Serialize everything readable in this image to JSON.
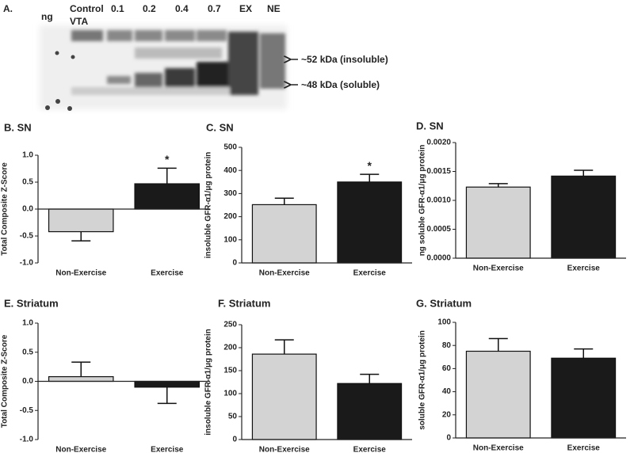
{
  "blot": {
    "panel_label": "A.",
    "unit_label": "ng",
    "lanes": [
      "Control",
      "VTA",
      "0.1",
      "0.2",
      "0.4",
      "0.7",
      "EX",
      "NE"
    ],
    "band_labels": [
      "~52 kDa (insoluble)",
      "~48 kDa (soluble)"
    ]
  },
  "chart_data": [
    {
      "type": "bar",
      "title": "B. SN",
      "y_label": "Total Composite Z-Score",
      "categories": [
        "Non-Exercise",
        "Exercise"
      ],
      "values": [
        -0.42,
        0.47
      ],
      "errors": [
        0.17,
        0.29
      ],
      "significance": [
        null,
        "*"
      ],
      "colors": [
        "#d3d3d3",
        "#1a1a1a"
      ],
      "ylim": [
        -1,
        1
      ],
      "yticks": [
        {
          "value": -1,
          "label": "-1.0"
        },
        {
          "value": -0.5,
          "label": "-0.5"
        },
        {
          "value": 0,
          "label": "0.0"
        },
        {
          "value": 0.5,
          "label": "0.5"
        },
        {
          "value": 1,
          "label": "1.0"
        }
      ]
    },
    {
      "type": "bar",
      "title": "C. SN",
      "y_label": "insoluble GFR-α1/μg protein",
      "categories": [
        "Non-Exercise",
        "Exercise"
      ],
      "values": [
        252,
        350
      ],
      "errors": [
        28,
        33
      ],
      "significance": [
        null,
        "*"
      ],
      "colors": [
        "#d3d3d3",
        "#1a1a1a"
      ],
      "ylim": [
        0,
        500
      ],
      "yticks": [
        0,
        100,
        200,
        300,
        400,
        500
      ]
    },
    {
      "type": "bar",
      "title": "D. SN",
      "y_label": "ng soluble GFR-α1/μg protein",
      "categories": [
        "Non-Exercise",
        "Exercise"
      ],
      "values": [
        0.00123,
        0.00142
      ],
      "errors": [
        6e-05,
        0.0001
      ],
      "significance": [
        null,
        null
      ],
      "colors": [
        "#d3d3d3",
        "#1a1a1a"
      ],
      "ylim": [
        0,
        0.002
      ],
      "yticks": [
        {
          "value": 0,
          "label": "0.0000"
        },
        {
          "value": 0.0005,
          "label": "0.0005"
        },
        {
          "value": 0.001,
          "label": "0.0010"
        },
        {
          "value": 0.0015,
          "label": "0.0015"
        },
        {
          "value": 0.002,
          "label": "0.0020"
        }
      ]
    },
    {
      "type": "bar",
      "title": "E. Striatum",
      "y_label": "Total Composite Z-Score",
      "categories": [
        "Non-Exercise",
        "Exercise"
      ],
      "values": [
        0.08,
        -0.1
      ],
      "errors": [
        0.25,
        0.28
      ],
      "significance": [
        null,
        null
      ],
      "colors": [
        "#d3d3d3",
        "#1a1a1a"
      ],
      "ylim": [
        -1,
        1
      ],
      "yticks": [
        {
          "value": -1,
          "label": "-1.0"
        },
        {
          "value": -0.5,
          "label": "-0.5"
        },
        {
          "value": 0,
          "label": "0.0"
        },
        {
          "value": 0.5,
          "label": "0.5"
        },
        {
          "value": 1,
          "label": "1.0"
        }
      ]
    },
    {
      "type": "bar",
      "title": "F. Striatum",
      "y_label": "insoluble GFR-α1/μg protein",
      "categories": [
        "Non-Exercise",
        "Exercise"
      ],
      "values": [
        186,
        122
      ],
      "errors": [
        31,
        20
      ],
      "significance": [
        null,
        null
      ],
      "colors": [
        "#d3d3d3",
        "#1a1a1a"
      ],
      "ylim": [
        0,
        250
      ],
      "yticks": [
        0,
        50,
        100,
        150,
        200,
        250
      ]
    },
    {
      "type": "bar",
      "title": "G. Striatum",
      "y_label": "soluble GFR-α1/μg protein",
      "categories": [
        "Non-Exercise",
        "Exercise"
      ],
      "values": [
        75,
        69
      ],
      "errors": [
        11,
        8
      ],
      "significance": [
        null,
        null
      ],
      "colors": [
        "#d3d3d3",
        "#1a1a1a"
      ],
      "ylim": [
        0,
        100
      ],
      "yticks": [
        0,
        20,
        40,
        60,
        80,
        100
      ]
    }
  ]
}
